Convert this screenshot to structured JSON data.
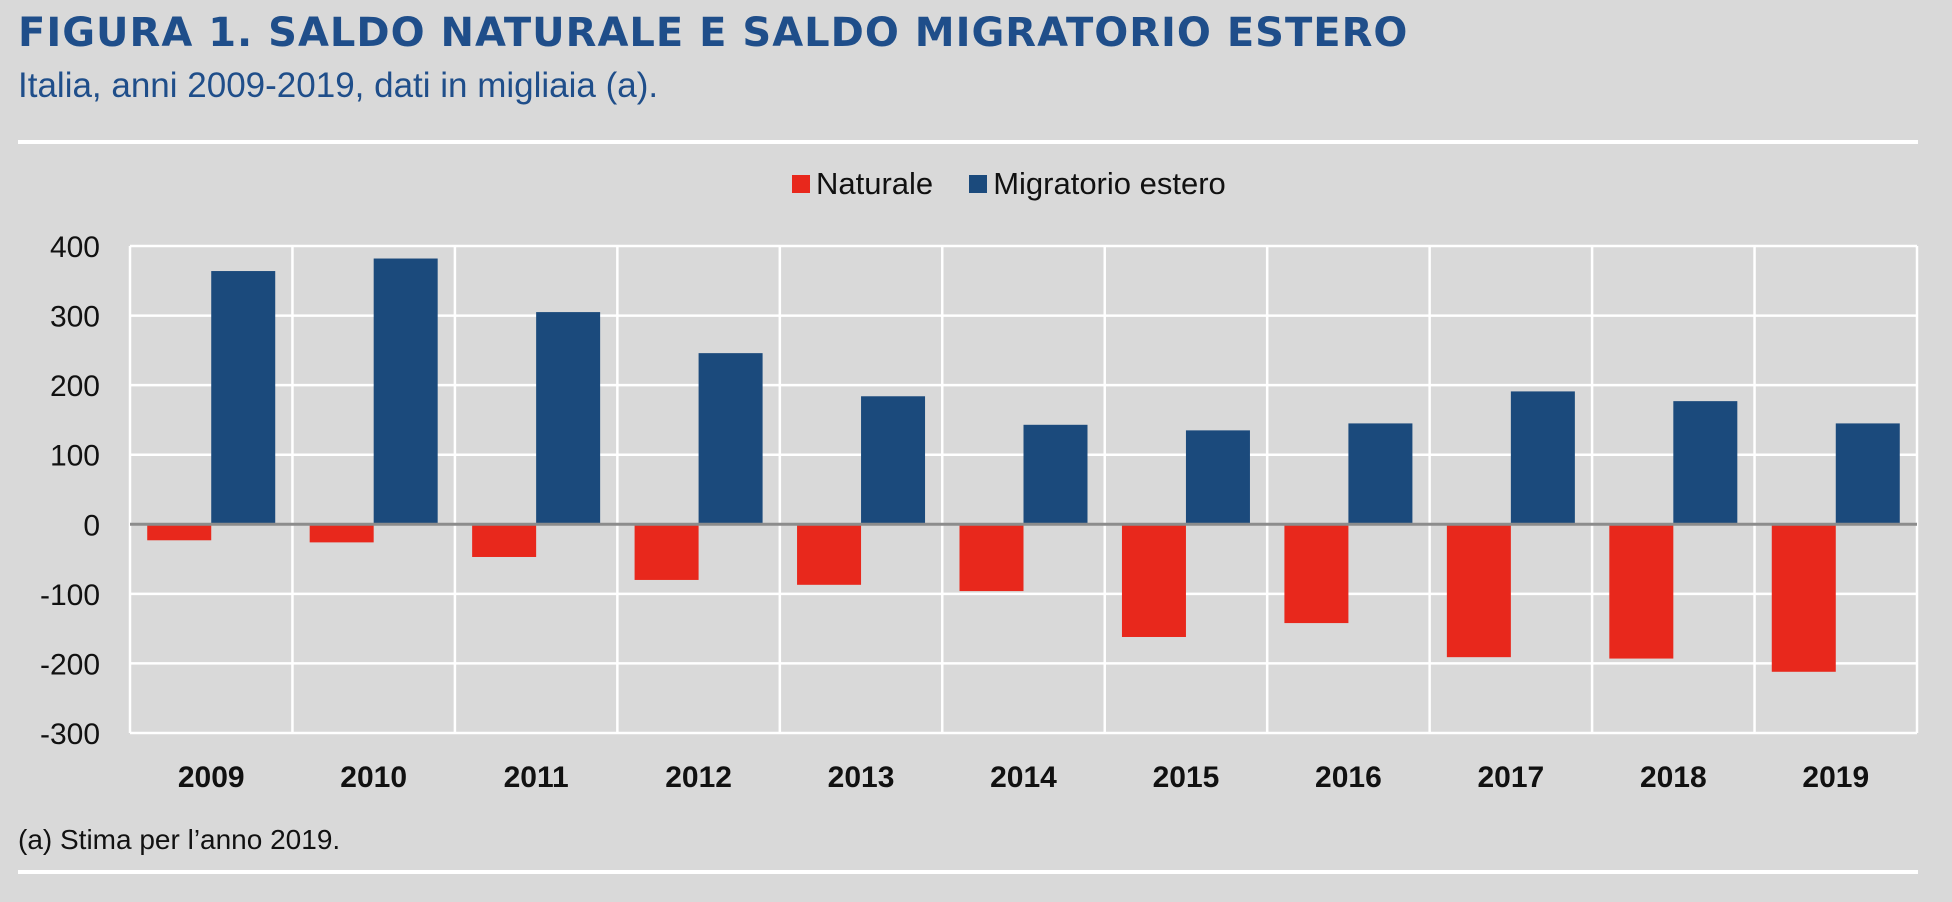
{
  "header": {
    "title": "FIGURA 1. SALDO NATURALE E SALDO MIGRATORIO ESTERO",
    "subtitle": "Italia, anni 2009-2019, dati in migliaia (a)."
  },
  "footnote": "(a) Stima per l’anno 2019.",
  "colors": {
    "naturale": "#e8281c",
    "migratorio": "#1b4a7c",
    "title": "#1f4e8a",
    "background": "#d9d9d9"
  },
  "chart_data": {
    "type": "bar",
    "title": "FIGURA 1. SALDO NATURALE E SALDO MIGRATORIO ESTERO",
    "subtitle": "Italia, anni 2009-2019, dati in migliaia (a).",
    "xlabel": "",
    "ylabel": "",
    "categories": [
      "2009",
      "2010",
      "2011",
      "2012",
      "2013",
      "2014",
      "2015",
      "2016",
      "2017",
      "2018",
      "2019"
    ],
    "series": [
      {
        "name": "Naturale",
        "color": "#e8281c",
        "values": [
          -23,
          -26,
          -47,
          -80,
          -87,
          -96,
          -162,
          -142,
          -191,
          -193,
          -212
        ]
      },
      {
        "name": "Migratorio estero",
        "color": "#1b4a7c",
        "values": [
          364,
          382,
          305,
          246,
          184,
          143,
          135,
          145,
          191,
          177,
          145
        ]
      }
    ],
    "ylim": [
      -300,
      400
    ],
    "yticks": [
      "400",
      "300",
      "200",
      "100",
      "0",
      "-100",
      "-200",
      "-300"
    ],
    "grid": true,
    "legend_position": "top-center"
  }
}
